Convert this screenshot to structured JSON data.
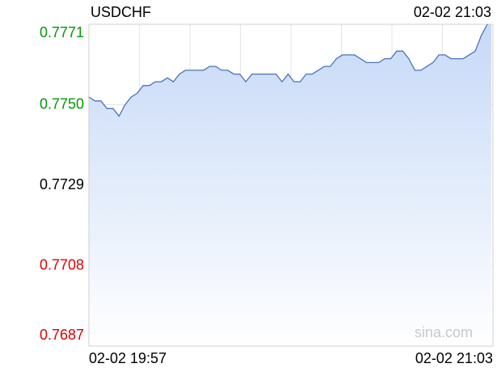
{
  "chart_data": {
    "type": "line",
    "title": "USDCHF",
    "updated": "02-02 21:03",
    "watermark": "sina.com",
    "categories": [
      "02-02 19:57",
      null,
      null,
      null,
      null,
      null,
      null,
      null,
      null,
      null,
      null,
      null,
      null,
      null,
      null,
      null,
      null,
      null,
      null,
      null,
      null,
      null,
      null,
      null,
      null,
      null,
      null,
      null,
      null,
      null,
      null,
      null,
      null,
      null,
      null,
      null,
      null,
      null,
      null,
      null,
      null,
      null,
      null,
      null,
      null,
      null,
      null,
      null,
      null,
      null,
      null,
      null,
      null,
      null,
      null,
      null,
      null,
      null,
      null,
      null,
      null,
      null,
      null,
      null,
      null,
      null,
      "02-02 21:03"
    ],
    "values": [
      0.7752,
      0.7751,
      0.7751,
      0.7749,
      0.7749,
      0.7747,
      0.775,
      0.7752,
      0.7753,
      0.7755,
      0.7755,
      0.7756,
      0.7756,
      0.7757,
      0.7756,
      0.7758,
      0.7759,
      0.7759,
      0.7759,
      0.7759,
      0.776,
      0.776,
      0.7759,
      0.7759,
      0.7758,
      0.7758,
      0.7756,
      0.7758,
      0.7758,
      0.7758,
      0.7758,
      0.7758,
      0.7756,
      0.7758,
      0.7756,
      0.7756,
      0.7758,
      0.7758,
      0.7759,
      0.776,
      0.776,
      0.7762,
      0.7763,
      0.7763,
      0.7763,
      0.7762,
      0.7761,
      0.7761,
      0.7761,
      0.7762,
      0.7762,
      0.7764,
      0.7764,
      0.7762,
      0.7759,
      0.7759,
      0.776,
      0.7761,
      0.7763,
      0.7763,
      0.7762,
      0.7762,
      0.7762,
      0.7763,
      0.7764,
      0.7768,
      0.7771
    ],
    "color": "#4a72b6",
    "ylim": [
      0.7687,
      0.7771
    ],
    "yticks": [
      0.7687,
      0.7708,
      0.7729,
      0.775,
      0.7771
    ],
    "ytick_labels": [
      "0.7687",
      "0.7708",
      "0.7729",
      "0.7750",
      "0.7771"
    ],
    "ytick_colors": [
      "#e00000",
      "#e00000",
      "#000000",
      "#009900",
      "#009900"
    ],
    "ytick_dashed": [
      false,
      false,
      true,
      false,
      false
    ],
    "grid": true
  }
}
